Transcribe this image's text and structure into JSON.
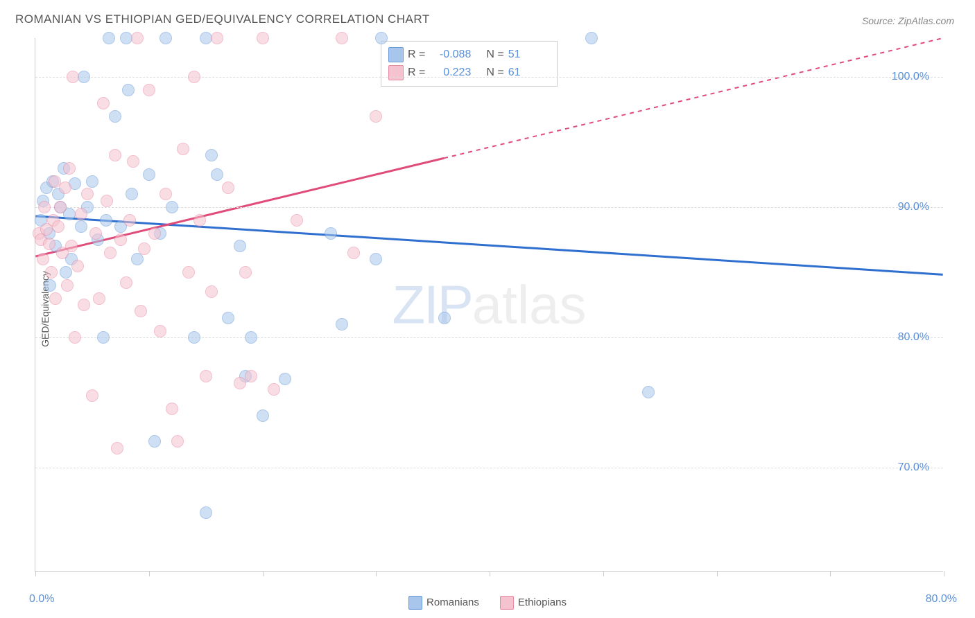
{
  "title": "ROMANIAN VS ETHIOPIAN GED/EQUIVALENCY CORRELATION CHART",
  "source": "Source: ZipAtlas.com",
  "y_axis_label": "GED/Equivalency",
  "watermark": {
    "part1": "ZIP",
    "part2": "atlas"
  },
  "chart": {
    "type": "scatter",
    "background_color": "#ffffff",
    "grid_color": "#dddddd",
    "axis_line_color": "#cccccc",
    "x_range": [
      0,
      80
    ],
    "y_range": [
      62,
      103
    ],
    "y_ticks": [
      70,
      80,
      90,
      100
    ],
    "y_tick_labels": [
      "70.0%",
      "80.0%",
      "90.0%",
      "100.0%"
    ],
    "x_ticks": [
      0,
      10,
      20,
      30,
      40,
      50,
      60,
      70,
      80
    ],
    "x_tick_labels": {
      "0": "0.0%",
      "80": "80.0%"
    },
    "point_radius": 9,
    "point_opacity": 0.55,
    "series": [
      {
        "name": "Romanians",
        "fill_color": "#a8c6ec",
        "stroke_color": "#6a9bd8",
        "trend_color": "#2f6fcf",
        "trend_width": 3,
        "R": "-0.088",
        "N": "51",
        "trend": {
          "y_at_x0": 89.3,
          "y_at_x80": 84.8,
          "solid_until_x": 80
        },
        "points": [
          [
            0.5,
            89
          ],
          [
            0.7,
            90.5
          ],
          [
            1,
            91.5
          ],
          [
            1.2,
            88
          ],
          [
            1.5,
            92
          ],
          [
            1.8,
            87
          ],
          [
            2,
            91
          ],
          [
            2.2,
            90
          ],
          [
            2.5,
            93
          ],
          [
            3,
            89.5
          ],
          [
            3.2,
            86
          ],
          [
            3.5,
            91.8
          ],
          [
            4,
            88.5
          ],
          [
            4.3,
            100
          ],
          [
            5,
            92
          ],
          [
            5.5,
            87.5
          ],
          [
            6,
            80
          ],
          [
            6.5,
            103
          ],
          [
            7,
            97
          ],
          [
            7.5,
            88.5
          ],
          [
            8,
            103
          ],
          [
            8.5,
            91
          ],
          [
            9,
            86
          ],
          [
            10,
            92.5
          ],
          [
            10.5,
            72
          ],
          [
            11,
            88
          ],
          [
            11.5,
            103
          ],
          [
            12,
            90
          ],
          [
            14,
            80
          ],
          [
            15,
            103
          ],
          [
            15,
            66.5
          ],
          [
            15.5,
            94
          ],
          [
            16,
            92.5
          ],
          [
            17,
            81.5
          ],
          [
            18,
            87
          ],
          [
            18.5,
            77
          ],
          [
            19,
            80
          ],
          [
            20,
            74
          ],
          [
            22,
            76.8
          ],
          [
            26,
            88
          ],
          [
            27,
            81
          ],
          [
            30,
            86
          ],
          [
            30.5,
            103
          ],
          [
            36,
            81.5
          ],
          [
            49,
            103
          ],
          [
            54,
            75.8
          ],
          [
            1.3,
            84
          ],
          [
            2.7,
            85
          ],
          [
            4.6,
            90
          ],
          [
            6.2,
            89
          ],
          [
            8.2,
            99
          ]
        ]
      },
      {
        "name": "Ethiopians",
        "fill_color": "#f5c3cf",
        "stroke_color": "#e88aa3",
        "trend_color": "#e14b7a",
        "trend_width": 3,
        "R": "0.223",
        "N": "61",
        "trend": {
          "y_at_x0": 86.2,
          "y_at_x80": 103,
          "solid_until_x": 36
        },
        "points": [
          [
            0.3,
            88
          ],
          [
            0.5,
            87.5
          ],
          [
            0.7,
            86
          ],
          [
            1,
            88.3
          ],
          [
            1.2,
            87.2
          ],
          [
            1.4,
            85
          ],
          [
            1.6,
            89
          ],
          [
            1.8,
            83
          ],
          [
            2,
            88.5
          ],
          [
            2.2,
            90
          ],
          [
            2.4,
            86.5
          ],
          [
            2.6,
            91.5
          ],
          [
            2.8,
            84
          ],
          [
            3,
            93
          ],
          [
            3.2,
            87
          ],
          [
            3.5,
            80
          ],
          [
            3.7,
            85.5
          ],
          [
            4,
            89.5
          ],
          [
            4.3,
            82.5
          ],
          [
            4.6,
            91
          ],
          [
            5,
            75.5
          ],
          [
            5.3,
            88
          ],
          [
            5.6,
            83
          ],
          [
            6,
            98
          ],
          [
            6.3,
            90.5
          ],
          [
            6.6,
            86.5
          ],
          [
            7,
            94
          ],
          [
            7.2,
            71.5
          ],
          [
            7.5,
            87.5
          ],
          [
            8,
            84.2
          ],
          [
            8.3,
            89
          ],
          [
            8.6,
            93.5
          ],
          [
            9,
            103
          ],
          [
            9.3,
            82
          ],
          [
            9.6,
            86.8
          ],
          [
            10,
            99
          ],
          [
            10.5,
            88
          ],
          [
            11,
            80.5
          ],
          [
            11.5,
            91
          ],
          [
            12,
            74.5
          ],
          [
            12.5,
            72
          ],
          [
            13,
            94.5
          ],
          [
            13.5,
            85
          ],
          [
            14,
            100
          ],
          [
            14.5,
            89
          ],
          [
            15,
            77
          ],
          [
            15.5,
            83.5
          ],
          [
            16,
            103
          ],
          [
            17,
            91.5
          ],
          [
            18,
            76.5
          ],
          [
            18.5,
            85
          ],
          [
            19,
            77
          ],
          [
            20,
            103
          ],
          [
            21,
            76
          ],
          [
            23,
            89
          ],
          [
            27,
            103
          ],
          [
            28,
            86.5
          ],
          [
            30,
            97
          ],
          [
            0.8,
            90
          ],
          [
            1.7,
            92
          ],
          [
            3.3,
            100
          ]
        ]
      }
    ],
    "legend": {
      "top_box": {
        "R_label": "R =",
        "N_label": "N ="
      },
      "bottom": [
        {
          "label": "Romanians",
          "fill": "#a8c6ec",
          "stroke": "#6a9bd8"
        },
        {
          "label": "Ethiopians",
          "fill": "#f5c3cf",
          "stroke": "#e88aa3"
        }
      ]
    }
  }
}
